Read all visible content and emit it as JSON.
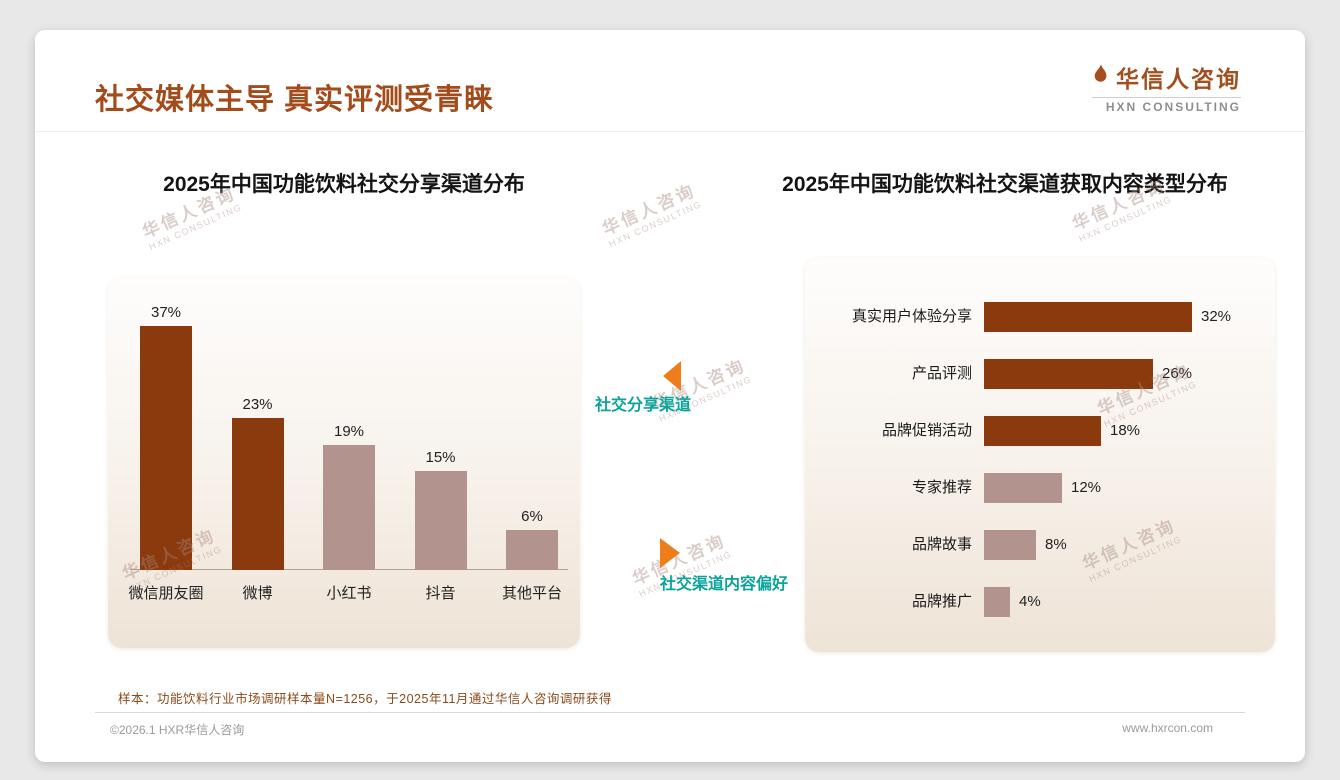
{
  "page": {
    "title": "社交媒体主导 真实评测受青睐",
    "footer_note": "样本：功能饮料行业市场调研样本量N=1256，于2025年11月通过华信人咨询调研获得",
    "footer_left": "©2026.1 HXR华信人咨询",
    "footer_right": "www.hxrcon.com"
  },
  "logo": {
    "name": "华信人咨询",
    "subtitle": "HXN CONSULTING"
  },
  "watermark": {
    "line1": "华信人咨询",
    "line2": "HXN CONSULTING"
  },
  "annotations": {
    "left_chart_tag": "社交分享渠道",
    "right_chart_tag": "社交渠道内容偏好"
  },
  "colors": {
    "accent_brown": "#A34B1A",
    "bar_dark": "#8B3A0D",
    "bar_light": "#B2938E",
    "teal": "#0CA39A",
    "orange": "#EE7E1B"
  },
  "chart_data": [
    {
      "type": "bar",
      "orientation": "vertical",
      "title": "2025年中国功能饮料社交分享渠道分布",
      "categories": [
        "微信朋友圈",
        "微博",
        "小红书",
        "抖音",
        "其他平台"
      ],
      "values": [
        37,
        23,
        19,
        15,
        6
      ],
      "unit": "%",
      "ylim": [
        0,
        40
      ],
      "grid": false,
      "legend": false,
      "bar_colors": [
        "dark",
        "dark",
        "light",
        "light",
        "light"
      ]
    },
    {
      "type": "bar",
      "orientation": "horizontal",
      "title": "2025年中国功能饮料社交渠道获取内容类型分布",
      "categories": [
        "真实用户体验分享",
        "产品评测",
        "品牌促销活动",
        "专家推荐",
        "品牌故事",
        "品牌推广"
      ],
      "values": [
        32,
        26,
        18,
        12,
        8,
        4
      ],
      "unit": "%",
      "xlim": [
        0,
        35
      ],
      "grid": false,
      "legend": false,
      "bar_colors": [
        "dark",
        "dark",
        "dark",
        "light",
        "light",
        "light"
      ]
    }
  ]
}
